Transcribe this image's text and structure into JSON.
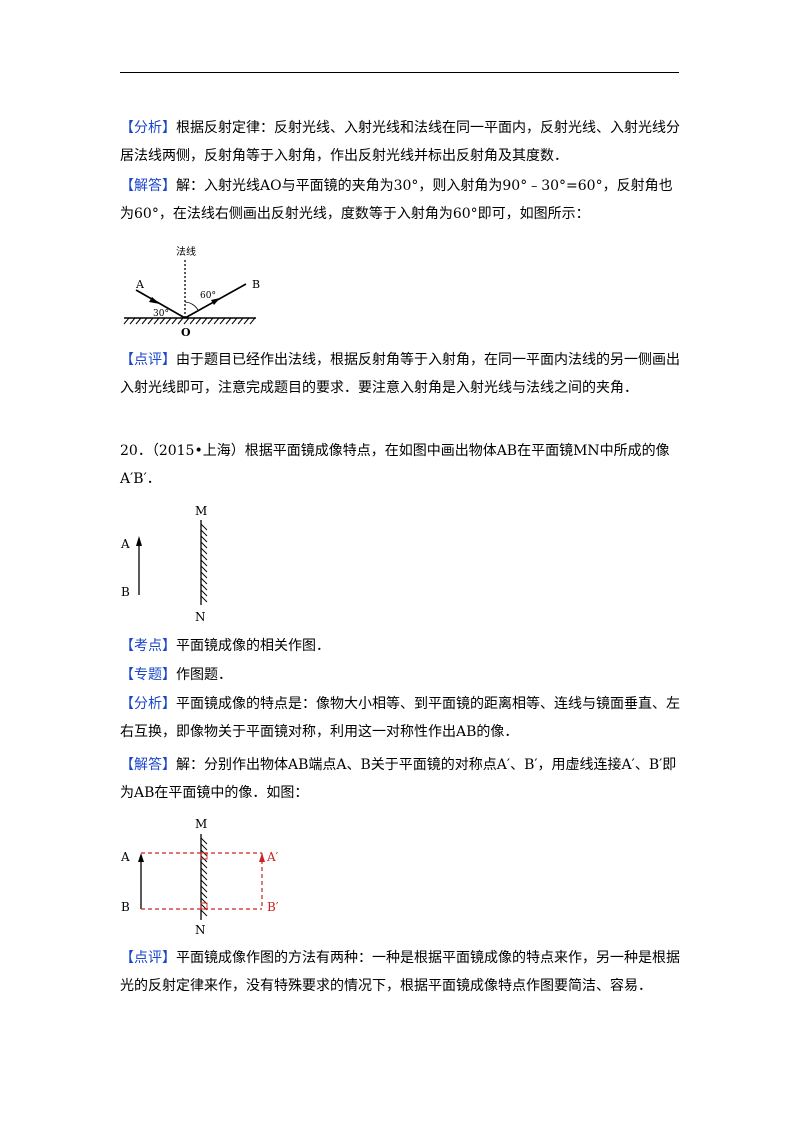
{
  "q19": {
    "analysis_tag": "【分析】",
    "analysis_text": "根据反射定律：反射光线、入射光线和法线在同一平面内，反射光线、入射光线分居法线两侧，反射角等于入射角，作出反射光线并标出反射角及其度数．",
    "answer_tag": "【解答】",
    "answer_text": "解：入射光线AO与平面镜的夹角为30°，则入射角为90°﹣30°=60°，反射角也为60°，在法线右侧画出反射光线，度数等于入射角为60°即可，如图所示：",
    "fig": {
      "normal_label": "法线",
      "label_a": "A",
      "label_b": "B",
      "label_o": "O",
      "angle_30": "30°",
      "angle_60": "60°"
    },
    "comment_tag": "【点评】",
    "comment_text": "由于题目已经作出法线，根据反射角等于入射角，在同一平面内法线的另一侧画出入射光线即可，注意完成题目的要求．要注意入射角是入射光线与法线之间的夹角．"
  },
  "q20": {
    "question_text": "20．（2015•上海）根据平面镜成像特点，在如图中画出物体AB在平面镜MN中所成的像A′B′．",
    "fig1": {
      "label_m": "M",
      "label_n": "N",
      "label_a": "A",
      "label_b": "B"
    },
    "point_tag": "【考点】",
    "point_text": "平面镜成像的相关作图．",
    "topic_tag": "【专题】",
    "topic_text": "作图题．",
    "analysis_tag": "【分析】",
    "analysis_text": "平面镜成像的特点是：像物大小相等、到平面镜的距离相等、连线与镜面垂直、左右互换，即像物关于平面镜对称，利用这一对称性作出AB的像．",
    "answer_tag": "【解答】",
    "answer_text": "解：分别作出物体AB端点A、B关于平面镜的对称点A′、B′，用虚线连接A′、B′即为AB在平面镜中的像．如图：",
    "fig2": {
      "label_m": "M",
      "label_n": "N",
      "label_a": "A",
      "label_b": "B",
      "label_a2": "A′",
      "label_b2": "B′"
    },
    "comment_tag": "【点评】",
    "comment_text": "平面镜成像作图的方法有两种：一种是根据平面镜成像的特点来作，另一种是根据光的反射定律来作，没有特殊要求的情况下，根据平面镜成像特点作图要简洁、容易．"
  },
  "colors": {
    "tag": "#1a46c8",
    "image_line": "#cc2222"
  }
}
